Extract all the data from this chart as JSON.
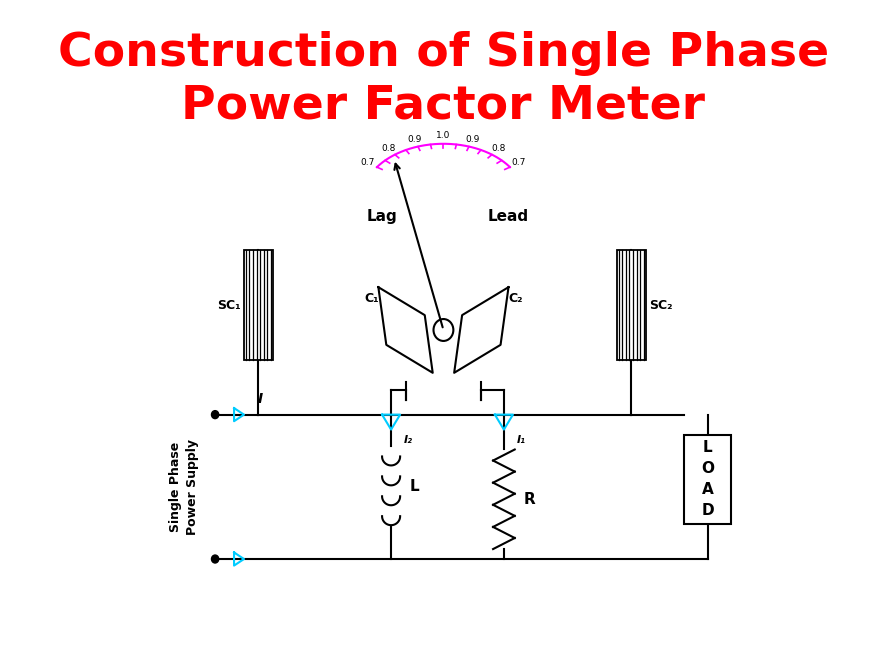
{
  "title_line1": "Construction of Single Phase",
  "title_line2": "Power Factor Meter",
  "title_color": "#FF0000",
  "title_fontsize": 34,
  "bg_color": "#FFFFFF",
  "diagram_color": "#000000",
  "arc_color": "#FF00FF",
  "cyan_color": "#00CCFF",
  "scale_labels": [
    "0.7",
    "0.8",
    "0.9",
    "1.0",
    "0.9",
    "0.8",
    "0.7"
  ],
  "lag_label": "Lag",
  "lead_label": "Lead",
  "sc1_label": "SC₁",
  "sc2_label": "SC₂",
  "c1_label": "C₁",
  "c2_label": "C₂",
  "i_label": "I",
  "i1_label": "I₁",
  "i2_label": "I₂",
  "l_label": "L",
  "r_label": "R",
  "supply_label": "Single Phase\nPower Supply",
  "load_label": "L\nO\nA\nD"
}
